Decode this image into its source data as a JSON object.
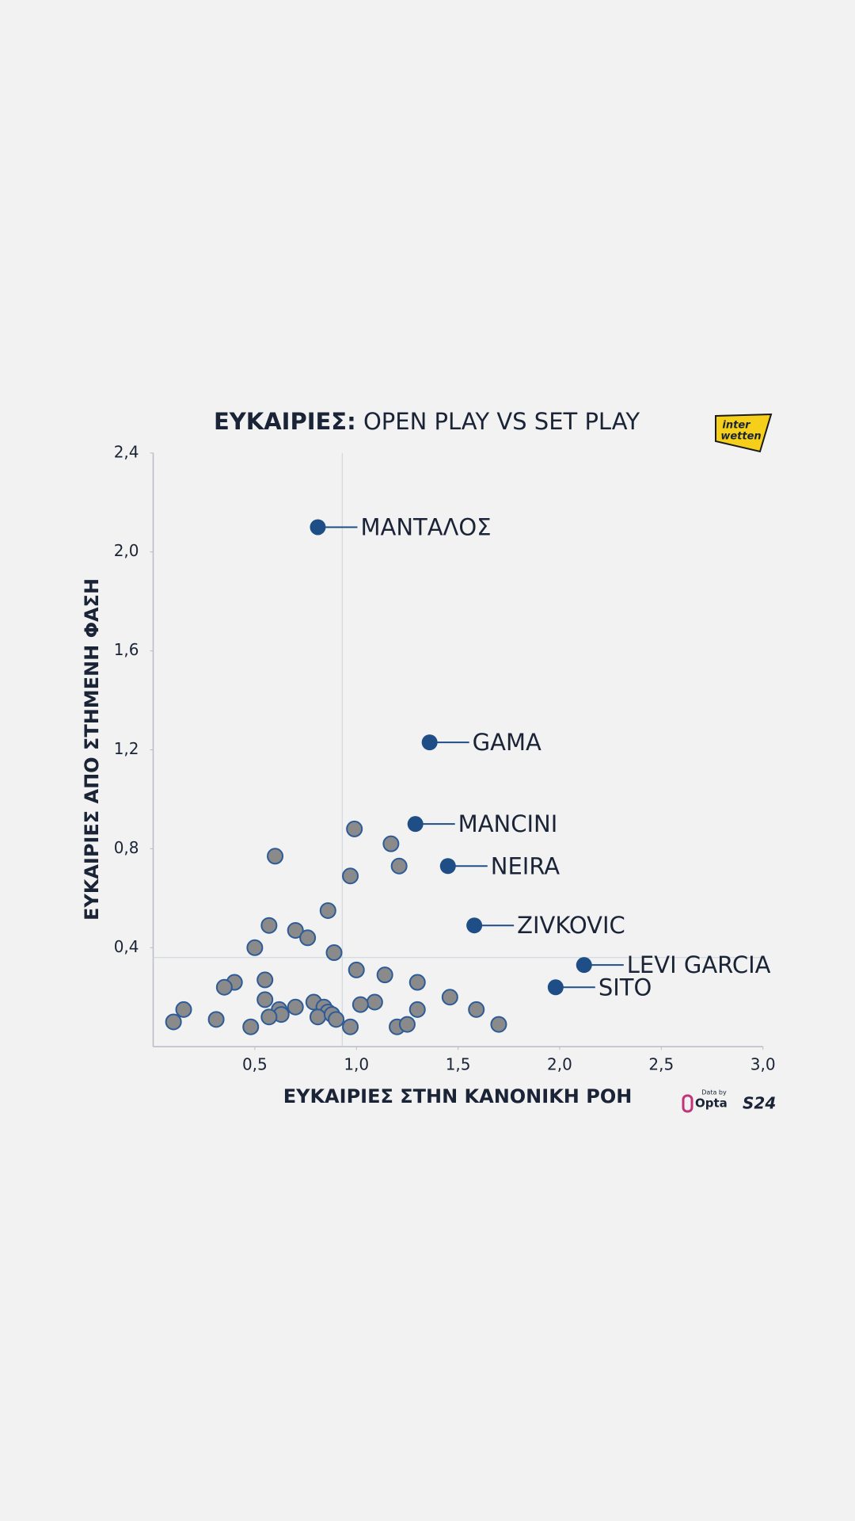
{
  "chart_data": {
    "type": "scatter",
    "title": {
      "emphasis": "ΕΥΚΑΙΡΙΕΣ:",
      "text": "OPEN PLAY VS SET PLAY"
    },
    "x_label": "ΕΥΚΑΙΡΙΕΣ ΣΤΗΝ ΚΑΝΟΝΙΚΗ ΡΟΗ",
    "y_label": "ΕΥΚΑΙΡΙΕΣ ΑΠΟ ΣΤΗΜΕΝΗ ΦΑΣΗ",
    "xlim": [
      0,
      3.0
    ],
    "ylim": [
      0,
      2.4
    ],
    "xticks": [
      {
        "value": 0.5,
        "label": "0,5"
      },
      {
        "value": 1.0,
        "label": "1,0"
      },
      {
        "value": 1.5,
        "label": "1,5"
      },
      {
        "value": 2.0,
        "label": "2,0"
      },
      {
        "value": 2.5,
        "label": "2,5"
      },
      {
        "value": 3.0,
        "label": "3,0"
      }
    ],
    "yticks": [
      {
        "value": 0.4,
        "label": "0,4"
      },
      {
        "value": 0.8,
        "label": "0,8"
      },
      {
        "value": 1.2,
        "label": "1,2"
      },
      {
        "value": 1.6,
        "label": "1,6"
      },
      {
        "value": 2.0,
        "label": "2,0"
      },
      {
        "value": 2.4,
        "label": "2,4"
      }
    ],
    "reference_lines": {
      "x": 0.93,
      "y": 0.36
    },
    "series": [
      {
        "color": "#8a8a8a",
        "x": [
          0.99,
          0.6,
          1.17,
          1.21,
          0.97,
          0.86,
          0.57,
          0.7,
          0.76,
          0.5,
          0.89,
          1.0,
          1.14,
          1.3,
          0.55,
          0.4,
          0.35,
          0.55,
          0.79,
          0.84,
          1.09,
          1.02,
          1.46,
          0.15,
          0.62,
          0.7,
          0.86,
          1.3,
          1.59,
          0.1,
          0.31,
          0.63,
          0.57,
          0.81,
          0.88,
          0.9,
          0.48,
          0.97,
          1.2,
          1.25,
          1.7
        ],
        "y": [
          0.88,
          0.77,
          0.82,
          0.73,
          0.69,
          0.55,
          0.49,
          0.47,
          0.44,
          0.4,
          0.38,
          0.31,
          0.29,
          0.26,
          0.27,
          0.26,
          0.24,
          0.19,
          0.18,
          0.16,
          0.18,
          0.17,
          0.2,
          0.15,
          0.15,
          0.16,
          0.14,
          0.15,
          0.15,
          0.1,
          0.11,
          0.13,
          0.12,
          0.12,
          0.13,
          0.11,
          0.08,
          0.08,
          0.08,
          0.09,
          0.09
        ]
      },
      {
        "color": "#1f4e86",
        "x": [
          0.81,
          1.36,
          1.29,
          1.45,
          1.58,
          2.12,
          1.98
        ],
        "y": [
          2.1,
          1.23,
          0.9,
          0.73,
          0.49,
          0.33,
          0.24
        ],
        "labels": [
          "ΜΑΝΤΑΛΟΣ",
          "GAMA",
          "MANCINI",
          "NEIRA",
          "ZIVKOVIC",
          "LEVI GARCIA",
          "SITO"
        ]
      }
    ]
  },
  "branding": {
    "sponsor": [
      "inter",
      "wetten"
    ],
    "data_by": "Data by",
    "provider": "Opta",
    "publisher": "S24"
  }
}
